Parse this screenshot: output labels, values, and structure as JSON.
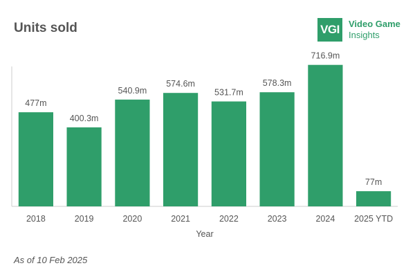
{
  "title": "Units sold",
  "logo": {
    "mark": "VGI",
    "line1": "Video Game",
    "line2": "Insights"
  },
  "footnote": "As of 10 Feb 2025",
  "colors": {
    "bar": "#2f9e6a",
    "text": "#555555",
    "axis": "#cccccc"
  },
  "chart_data": {
    "type": "bar",
    "categories": [
      "2018",
      "2019",
      "2020",
      "2021",
      "2022",
      "2023",
      "2024",
      "2025 YTD"
    ],
    "values": [
      477,
      400.3,
      540.9,
      574.6,
      531.7,
      578.3,
      716.9,
      77
    ],
    "data_labels": [
      "477m",
      "400.3m",
      "540.9m",
      "574.6m",
      "531.7m",
      "578.3m",
      "716.9m",
      "77m"
    ],
    "xlabel": "Year",
    "ylabel": "",
    "ylim": [
      0,
      800
    ],
    "grid": false,
    "legend": "none"
  }
}
